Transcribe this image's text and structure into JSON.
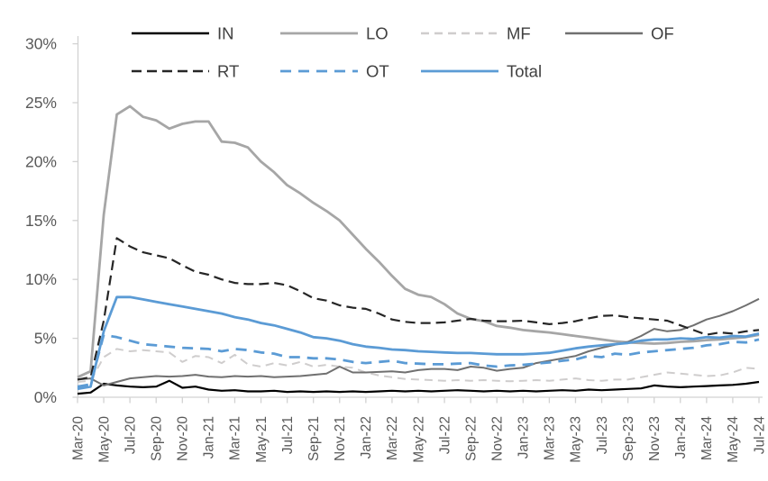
{
  "chart_data": {
    "type": "line",
    "title": "",
    "xlabel": "",
    "ylabel": "",
    "ylim": [
      0,
      30
    ],
    "y_ticks": [
      "0%",
      "5%",
      "10%",
      "15%",
      "20%",
      "25%",
      "30%"
    ],
    "y_unit": "percent",
    "grid": false,
    "legend_position": "top",
    "x_tick_step": 2,
    "axis_color": "#d2d2d2",
    "tick_label_color": "#595959",
    "legend_text_color": "#404040",
    "legend_rows": [
      [
        "IN",
        "LO",
        "MF",
        "OF"
      ],
      [
        "RT",
        "OT",
        "Total"
      ]
    ],
    "x": [
      "Mar-20",
      "Apr-20",
      "May-20",
      "Jun-20",
      "Jul-20",
      "Aug-20",
      "Sep-20",
      "Oct-20",
      "Nov-20",
      "Dec-20",
      "Jan-21",
      "Feb-21",
      "Mar-21",
      "Apr-21",
      "May-21",
      "Jun-21",
      "Jul-21",
      "Aug-21",
      "Sep-21",
      "Oct-21",
      "Nov-21",
      "Dec-21",
      "Jan-22",
      "Feb-22",
      "Mar-22",
      "Apr-22",
      "May-22",
      "Jun-22",
      "Jul-22",
      "Aug-22",
      "Sep-22",
      "Oct-22",
      "Nov-22",
      "Dec-22",
      "Jan-23",
      "Feb-23",
      "Mar-23",
      "Apr-23",
      "May-23",
      "Jun-23",
      "Jul-23",
      "Aug-23",
      "Sep-23",
      "Oct-23",
      "Nov-23",
      "Dec-23",
      "Jan-24",
      "Feb-24",
      "Mar-24",
      "Apr-24",
      "May-24",
      "Jun-24",
      "Jul-24"
    ],
    "series": [
      {
        "name": "IN",
        "color": "#000000",
        "width": 2.2,
        "dash": "solid",
        "dash_array": "",
        "values": [
          0.3,
          0.4,
          1.15,
          1.0,
          0.9,
          0.85,
          0.9,
          1.4,
          0.8,
          0.9,
          0.65,
          0.55,
          0.6,
          0.5,
          0.5,
          0.55,
          0.45,
          0.5,
          0.45,
          0.5,
          0.45,
          0.5,
          0.45,
          0.5,
          0.55,
          0.5,
          0.55,
          0.5,
          0.55,
          0.6,
          0.55,
          0.5,
          0.55,
          0.5,
          0.55,
          0.5,
          0.55,
          0.6,
          0.55,
          0.65,
          0.6,
          0.65,
          0.7,
          0.75,
          1.0,
          0.9,
          0.85,
          0.9,
          0.95,
          1.0,
          1.05,
          1.15,
          1.3
        ]
      },
      {
        "name": "LO",
        "color": "#a6a6a6",
        "width": 2.8,
        "dash": "solid",
        "dash_array": "",
        "values": [
          1.7,
          2.2,
          15.5,
          24.0,
          24.7,
          23.8,
          23.5,
          22.8,
          23.2,
          23.4,
          23.4,
          21.7,
          21.6,
          21.2,
          20.0,
          19.1,
          18.0,
          17.3,
          16.5,
          15.8,
          15.0,
          13.8,
          12.6,
          11.5,
          10.3,
          9.2,
          8.7,
          8.5,
          7.9,
          7.1,
          6.65,
          6.45,
          6.05,
          5.9,
          5.7,
          5.6,
          5.5,
          5.35,
          5.2,
          5.05,
          4.9,
          4.75,
          4.65,
          4.6,
          4.55,
          4.6,
          4.7,
          4.75,
          4.85,
          4.9,
          5.0,
          5.1,
          5.3
        ]
      },
      {
        "name": "MF",
        "color": "#cfcdcd",
        "width": 2.0,
        "dash": "dashed",
        "dash_array": "9 6",
        "values": [
          1.3,
          1.4,
          3.4,
          4.1,
          3.9,
          4.0,
          3.9,
          3.8,
          3.0,
          3.5,
          3.4,
          2.9,
          3.6,
          2.8,
          2.6,
          2.9,
          2.7,
          3.0,
          2.6,
          2.75,
          2.6,
          2.5,
          2.1,
          1.85,
          1.7,
          1.55,
          1.5,
          1.45,
          1.4,
          1.45,
          1.4,
          1.45,
          1.4,
          1.35,
          1.4,
          1.45,
          1.4,
          1.5,
          1.6,
          1.45,
          1.4,
          1.5,
          1.5,
          1.7,
          1.9,
          2.1,
          2.0,
          1.9,
          1.8,
          1.85,
          2.1,
          2.5,
          2.4
        ]
      },
      {
        "name": "OF",
        "color": "#707070",
        "width": 2.0,
        "dash": "solid",
        "dash_array": "",
        "values": [
          1.5,
          1.6,
          1.0,
          1.3,
          1.6,
          1.7,
          1.8,
          1.75,
          1.8,
          1.9,
          1.75,
          1.7,
          1.8,
          1.75,
          1.8,
          1.7,
          1.75,
          1.8,
          1.9,
          2.0,
          2.6,
          2.1,
          2.1,
          2.15,
          2.2,
          2.1,
          2.3,
          2.4,
          2.4,
          2.3,
          2.6,
          2.5,
          2.25,
          2.4,
          2.5,
          2.9,
          3.1,
          3.3,
          3.5,
          3.9,
          4.2,
          4.45,
          4.7,
          5.2,
          5.8,
          5.6,
          5.7,
          6.1,
          6.6,
          6.9,
          7.3,
          7.8,
          8.35
        ]
      },
      {
        "name": "RT",
        "color": "#262626",
        "width": 2.2,
        "dash": "dashed",
        "dash_array": "11 6",
        "values": [
          1.5,
          1.7,
          6.5,
          13.5,
          12.8,
          12.3,
          12.05,
          11.8,
          11.2,
          10.65,
          10.4,
          10.0,
          9.7,
          9.6,
          9.6,
          9.7,
          9.5,
          9.0,
          8.4,
          8.2,
          7.8,
          7.6,
          7.5,
          7.1,
          6.6,
          6.4,
          6.3,
          6.3,
          6.35,
          6.5,
          6.65,
          6.5,
          6.45,
          6.45,
          6.5,
          6.35,
          6.2,
          6.3,
          6.45,
          6.7,
          6.9,
          6.95,
          6.8,
          6.7,
          6.6,
          6.5,
          6.1,
          5.7,
          5.3,
          5.5,
          5.4,
          5.6,
          5.7
        ]
      },
      {
        "name": "OT",
        "color": "#5b9bd5",
        "width": 2.8,
        "dash": "dashed",
        "dash_array": "12 8",
        "values": [
          0.9,
          1.1,
          5.3,
          5.1,
          4.8,
          4.5,
          4.4,
          4.3,
          4.2,
          4.15,
          4.1,
          3.9,
          4.1,
          4.0,
          3.8,
          3.7,
          3.4,
          3.4,
          3.3,
          3.3,
          3.2,
          3.0,
          2.9,
          3.0,
          3.1,
          2.9,
          2.85,
          2.8,
          2.8,
          2.85,
          2.9,
          2.7,
          2.6,
          2.7,
          2.75,
          2.85,
          2.95,
          3.1,
          3.2,
          3.5,
          3.4,
          3.7,
          3.6,
          3.8,
          3.9,
          4.0,
          4.1,
          4.2,
          4.4,
          4.5,
          4.7,
          4.65,
          4.9
        ]
      },
      {
        "name": "Total",
        "color": "#5b9bd5",
        "width": 2.8,
        "dash": "solid",
        "dash_array": "",
        "values": [
          0.7,
          0.9,
          5.6,
          8.5,
          8.5,
          8.3,
          8.1,
          7.9,
          7.7,
          7.5,
          7.3,
          7.1,
          6.8,
          6.6,
          6.3,
          6.1,
          5.8,
          5.5,
          5.1,
          5.0,
          4.8,
          4.5,
          4.3,
          4.2,
          4.05,
          4.0,
          3.9,
          3.85,
          3.8,
          3.75,
          3.75,
          3.7,
          3.65,
          3.65,
          3.65,
          3.7,
          3.77,
          3.95,
          4.15,
          4.3,
          4.4,
          4.5,
          4.6,
          4.8,
          4.9,
          4.9,
          5.0,
          4.95,
          5.1,
          5.05,
          5.2,
          5.15,
          5.4
        ]
      }
    ]
  }
}
